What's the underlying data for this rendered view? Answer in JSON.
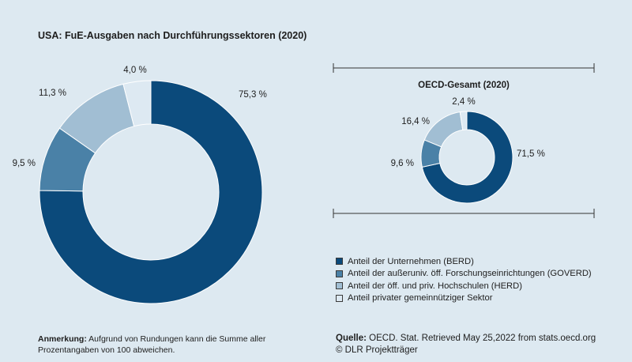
{
  "chart_data": [
    {
      "type": "pie",
      "variant": "donut",
      "title": "USA: FuE-Ausgaben nach Durchführungssektoren (2020)",
      "categories": [
        "Anteil der Unternehmen (BERD)",
        "Anteil der außeruniv. öff. Forschungseinrichtungen (GOVERD)",
        "Anteil der öff. und priv. Hochschulen (HERD)",
        "Anteil privater gemeinnütziger Sektor"
      ],
      "values": [
        75.3,
        9.5,
        11.3,
        4.0
      ],
      "labels": [
        "75,3 %",
        "9,5 %",
        "11,3 %",
        "4,0 %"
      ]
    },
    {
      "type": "pie",
      "variant": "donut",
      "title": "OECD-Gesamt (2020)",
      "categories": [
        "Anteil der Unternehmen (BERD)",
        "Anteil der außeruniv. öff. Forschungseinrichtungen (GOVERD)",
        "Anteil der öff. und priv. Hochschulen (HERD)",
        "Anteil privater gemeinnütziger Sektor"
      ],
      "values": [
        71.5,
        9.6,
        16.4,
        2.4
      ],
      "labels": [
        "71,5 %",
        "9,6 %",
        "16,4 %",
        "2,4 %"
      ]
    }
  ],
  "colors": [
    "#0b4a7b",
    "#4a81a7",
    "#a1bed3",
    "#dde9f2"
  ],
  "legend": {
    "items": [
      "Anteil der Unternehmen (BERD)",
      "Anteil der außeruniv. öff. Forschungseinrichtungen (GOVERD)",
      "Anteil der öff. und priv. Hochschulen (HERD)",
      "Anteil privater gemeinnütziger Sektor"
    ]
  },
  "note": {
    "label": "Anmerkung:",
    "text": " Aufgrund von Rundungen kann die Summe aller Prozentangaben von 100 abweichen."
  },
  "source": {
    "label": "Quelle:",
    "text": " OECD. Stat. Retrieved May 25,2022 from stats.oecd.org",
    "copyright": "© DLR Projektträger"
  }
}
